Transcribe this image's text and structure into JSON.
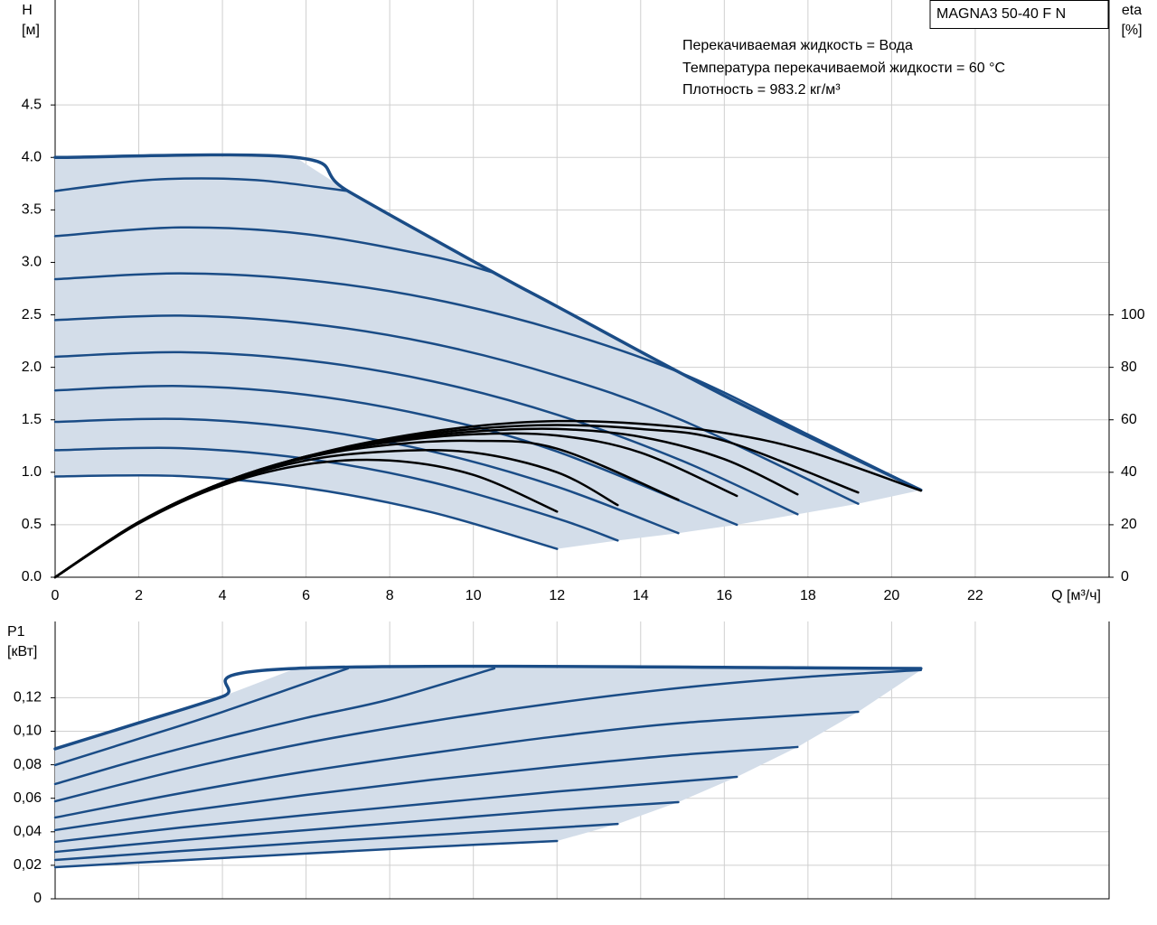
{
  "chart_data": [
    {
      "type": "line",
      "model": "MAGNA3 50-40 F N",
      "annotations": [
        "Перекачиваемая жидкость = Вода",
        "Температура перекачиваемой жидкости = 60 °C",
        "Плотность = 983.2 кг/м³"
      ],
      "y_label": "H",
      "y_unit": "[м]",
      "y2_label": "eta",
      "y2_unit": "[%]",
      "x_label": "Q [м³/ч]",
      "xlim": [
        0,
        25.2
      ],
      "ylim": [
        0,
        5.5
      ],
      "y2lim": [
        0,
        220
      ],
      "xticks": [
        0,
        2,
        4,
        6,
        8,
        10,
        12,
        14,
        16,
        18,
        20,
        22
      ],
      "yticks": [
        {
          "value": 0,
          "label": "0.0"
        },
        0.5,
        {
          "value": 1,
          "label": "1.0"
        },
        1.5,
        {
          "value": 2,
          "label": "2.0"
        },
        2.5,
        {
          "value": 3,
          "label": "3.0"
        },
        3.5,
        {
          "value": 4,
          "label": "4.0"
        },
        4.5
      ],
      "y2ticks": [
        0,
        20,
        40,
        60,
        80,
        100
      ],
      "grid": true,
      "area_color": "#d3dde9",
      "series": [
        {
          "color": "#1a4c86",
          "x": [
            0,
            5.75,
            7,
            10.5,
            12,
            16,
            20.7
          ],
          "values": [
            4,
            4,
            3.68,
            2.9,
            2.58,
            1.73,
            0.83
          ]
        },
        {
          "color": "#1a4c86",
          "x": [
            0,
            2,
            3.5,
            5,
            7
          ],
          "values": [
            3.68,
            3.778,
            3.8,
            3.778,
            3.68
          ]
        },
        {
          "color": "#1a4c86",
          "x": [
            0,
            3,
            6,
            9,
            10.5
          ],
          "values": [
            3.25,
            3.333,
            3.269,
            3.059,
            2.9
          ]
        },
        {
          "color": "#1a4c86",
          "x": [
            0,
            3,
            6,
            9,
            12,
            15,
            18,
            20.7
          ],
          "values": [
            2.84,
            2.895,
            2.832,
            2.652,
            2.355,
            1.94,
            1.36,
            0.83
          ]
        },
        {
          "color": "#1a4c86",
          "x": [
            0,
            3,
            6,
            9,
            12,
            15,
            19.2
          ],
          "values": [
            2.45,
            2.493,
            2.419,
            2.228,
            1.92,
            1.494,
            0.7
          ]
        },
        {
          "color": "#1a4c86",
          "x": [
            0,
            3,
            6,
            9,
            12,
            15,
            17.75
          ],
          "values": [
            2.1,
            2.144,
            2.067,
            1.869,
            1.549,
            1.108,
            0.6
          ]
        },
        {
          "color": "#1a4c86",
          "x": [
            0,
            3,
            6,
            9,
            12,
            16.3
          ],
          "values": [
            1.78,
            1.822,
            1.739,
            1.53,
            1.198,
            0.5
          ]
        },
        {
          "color": "#1a4c86",
          "x": [
            0,
            3,
            6,
            9,
            12,
            14.9
          ],
          "values": [
            1.48,
            1.508,
            1.415,
            1.199,
            0.862,
            0.42
          ]
        },
        {
          "color": "#1a4c86",
          "x": [
            0,
            3,
            6,
            9,
            12,
            13.45
          ],
          "values": [
            1.21,
            1.23,
            1.129,
            0.906,
            0.56,
            0.35
          ]
        },
        {
          "color": "#1a4c86",
          "x": [
            0,
            3,
            6,
            9,
            12
          ],
          "values": [
            0.96,
            0.964,
            0.85,
            0.619,
            0.27
          ]
        },
        {
          "color": "#000000",
          "axis": "y2",
          "x": [
            0,
            2,
            4,
            6,
            8,
            10,
            12,
            14,
            16,
            18,
            20.7
          ],
          "values": [
            0,
            21,
            36,
            46,
            53,
            57.5,
            59.5,
            58.5,
            55,
            48,
            33
          ]
        },
        {
          "color": "#000000",
          "axis": "y2",
          "x": [
            0,
            2,
            4,
            6,
            8,
            10,
            12,
            14,
            16,
            19.2
          ],
          "values": [
            0,
            21,
            36,
            46,
            52.5,
            56.5,
            58,
            56.5,
            52,
            32.3
          ]
        },
        {
          "color": "#000000",
          "axis": "y2",
          "x": [
            0,
            2,
            4,
            6,
            8,
            10,
            12,
            14,
            16,
            17.75
          ],
          "values": [
            0,
            21,
            36,
            46,
            52,
            55.5,
            56.5,
            53.5,
            45,
            31.6
          ]
        },
        {
          "color": "#000000",
          "axis": "y2",
          "x": [
            0,
            2,
            4,
            6,
            8,
            10,
            12,
            14,
            16.3
          ],
          "values": [
            0,
            21,
            36,
            46,
            51.5,
            54.5,
            54,
            47.5,
            31
          ]
        },
        {
          "color": "#000000",
          "axis": "y2",
          "x": [
            0,
            2,
            4,
            6,
            8,
            10,
            12,
            14.9
          ],
          "values": [
            0,
            21,
            36,
            45.5,
            50.5,
            52,
            49,
            29.5
          ]
        },
        {
          "color": "#000000",
          "axis": "y2",
          "x": [
            0,
            2,
            4,
            6,
            8,
            10,
            12,
            13.45
          ],
          "values": [
            0,
            21,
            35.5,
            44.5,
            48,
            47.5,
            40,
            27.5
          ]
        },
        {
          "color": "#000000",
          "axis": "y2",
          "x": [
            0,
            2,
            4,
            6,
            8,
            10,
            12
          ],
          "values": [
            0,
            20.5,
            35,
            43,
            44.5,
            39,
            25
          ]
        }
      ]
    },
    {
      "type": "line",
      "y_label": "P1",
      "y_unit": "[кВт]",
      "xlim": [
        0,
        25.2
      ],
      "ylim": [
        0,
        0.1655
      ],
      "yticks": [
        0,
        {
          "value": 0.02,
          "label": "0,02"
        },
        {
          "value": 0.04,
          "label": "0,04"
        },
        {
          "value": 0.06,
          "label": "0,06"
        },
        {
          "value": 0.08,
          "label": "0,08"
        },
        {
          "value": 0.1,
          "label": "0,10"
        },
        {
          "value": 0.12,
          "label": "0,12"
        }
      ],
      "grid": true,
      "area_color": "#d3dde9",
      "series": [
        {
          "color": "#1a4c86",
          "x": [
            0,
            2,
            4,
            5.75,
            20.7
          ],
          "values": [
            0.0895,
            0.105,
            0.1207,
            0.1375,
            0.1375
          ]
        },
        {
          "color": "#1a4c86",
          "x": [
            0,
            2,
            4,
            7
          ],
          "values": [
            0.0798,
            0.0955,
            0.1115,
            0.1375
          ]
        },
        {
          "color": "#1a4c86",
          "x": [
            0,
            2,
            4,
            6,
            8,
            10.5
          ],
          "values": [
            0.0685,
            0.083,
            0.096,
            0.108,
            0.119,
            0.1375
          ]
        },
        {
          "color": "#1a4c86",
          "x": [
            0,
            3,
            6,
            9,
            12,
            15,
            18,
            20.7
          ],
          "values": [
            0.0582,
            0.077,
            0.093,
            0.106,
            0.117,
            0.126,
            0.1325,
            0.1365
          ]
        },
        {
          "color": "#1a4c86",
          "x": [
            0,
            3,
            6,
            9,
            12,
            15,
            19.2
          ],
          "values": [
            0.0485,
            0.063,
            0.076,
            0.087,
            0.097,
            0.105,
            0.1116
          ]
        },
        {
          "color": "#1a4c86",
          "x": [
            0,
            3,
            6,
            9,
            12,
            15,
            17.75
          ],
          "values": [
            0.041,
            0.052,
            0.062,
            0.071,
            0.079,
            0.086,
            0.0906
          ]
        },
        {
          "color": "#1a4c86",
          "x": [
            0,
            3,
            6,
            9,
            12,
            16.3
          ],
          "values": [
            0.034,
            0.0425,
            0.05,
            0.057,
            0.064,
            0.0728
          ]
        },
        {
          "color": "#1a4c86",
          "x": [
            0,
            3,
            6,
            9,
            12,
            14.9
          ],
          "values": [
            0.028,
            0.035,
            0.041,
            0.047,
            0.053,
            0.0577
          ]
        },
        {
          "color": "#1a4c86",
          "x": [
            0,
            3,
            6,
            9,
            13.45
          ],
          "values": [
            0.0232,
            0.0285,
            0.0335,
            0.038,
            0.0447
          ]
        },
        {
          "color": "#1a4c86",
          "x": [
            0,
            3,
            6,
            9,
            12
          ],
          "values": [
            0.0189,
            0.023,
            0.027,
            0.031,
            0.0345
          ]
        }
      ]
    }
  ]
}
